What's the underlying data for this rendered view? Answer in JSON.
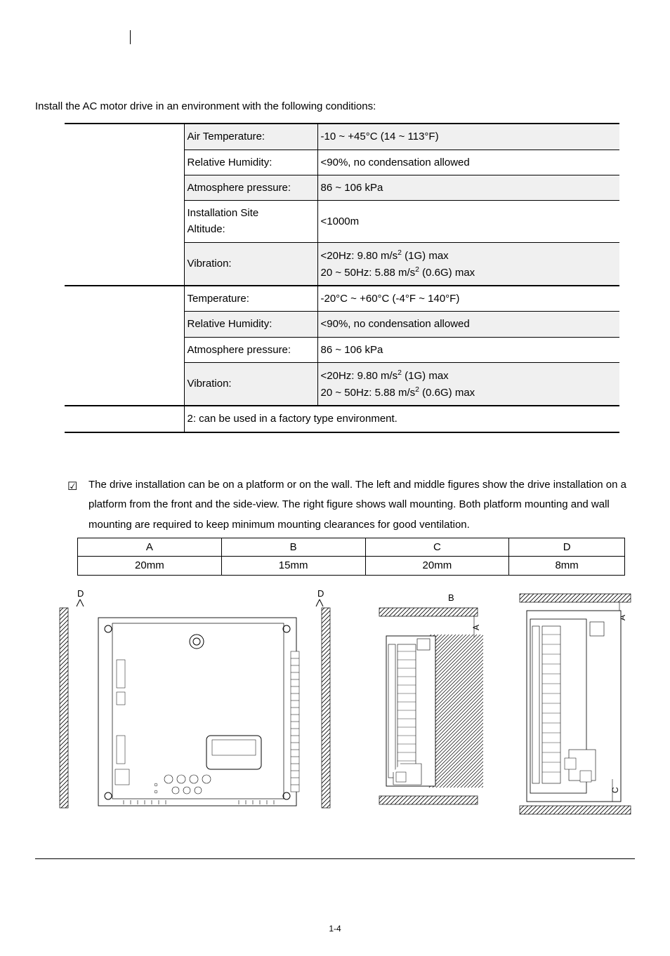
{
  "intro": "Install the AC motor drive in an environment with the following conditions:",
  "spec": {
    "rows": [
      {
        "left": "",
        "leftSpan": 5,
        "mid": "Air Temperature:",
        "val": "-10 ~ +45°C (14 ~ 113°F)",
        "shade": true,
        "groupTop": true
      },
      {
        "mid": "Relative Humidity:",
        "val": "<90%, no condensation allowed",
        "shade": false
      },
      {
        "mid": "Atmosphere pressure:",
        "val": "86 ~ 106 kPa",
        "shade": true
      },
      {
        "mid": "Installation Site\nAltitude:",
        "val": "<1000m",
        "shade": false,
        "multiline": true
      },
      {
        "mid": "Vibration:",
        "val_html": "<20Hz: 9.80 m/s<sup>2</sup> (1G) max<br>20 ~ 50Hz: 5.88 m/s<sup>2</sup> (0.6G) max",
        "shade": true,
        "groupBot": false
      },
      {
        "left": "",
        "leftSpan": 4,
        "mid": "Temperature:",
        "val": "-20°C ~ +60°C (-4°F ~ 140°F)",
        "shade": false,
        "groupTop": true
      },
      {
        "mid": "Relative Humidity:",
        "val": "<90%, no condensation allowed",
        "shade": true
      },
      {
        "mid": "Atmosphere pressure:",
        "val": "86 ~ 106 kPa",
        "shade": false
      },
      {
        "mid": "Vibration:",
        "val_html": "<20Hz: 9.80 m/s<sup>2</sup> (1G) max<br>20 ~ 50Hz: 5.88 m/s<sup>2</sup> (0.6G) max",
        "shade": true
      },
      {
        "left": "",
        "leftSpan": 1,
        "full": "2: can be used in a factory type environment.",
        "shade": false,
        "groupTop": true,
        "groupBot": true
      }
    ]
  },
  "checklist_item": "The drive installation can be on a platform or on the wall. The left and middle figures show the drive installation on a platform from the front and the side-view. The right figure shows wall mounting. Both platform mounting and wall mounting are required to keep minimum mounting clearances for good ventilation.",
  "clearance": {
    "headers": [
      "A",
      "B",
      "C",
      "D"
    ],
    "values": [
      "20mm",
      "15mm",
      "20mm",
      "8mm"
    ]
  },
  "page_number": "1-4",
  "colors": {
    "shade": "#f0f0f0",
    "border": "#000000",
    "hatch": "#000000"
  }
}
